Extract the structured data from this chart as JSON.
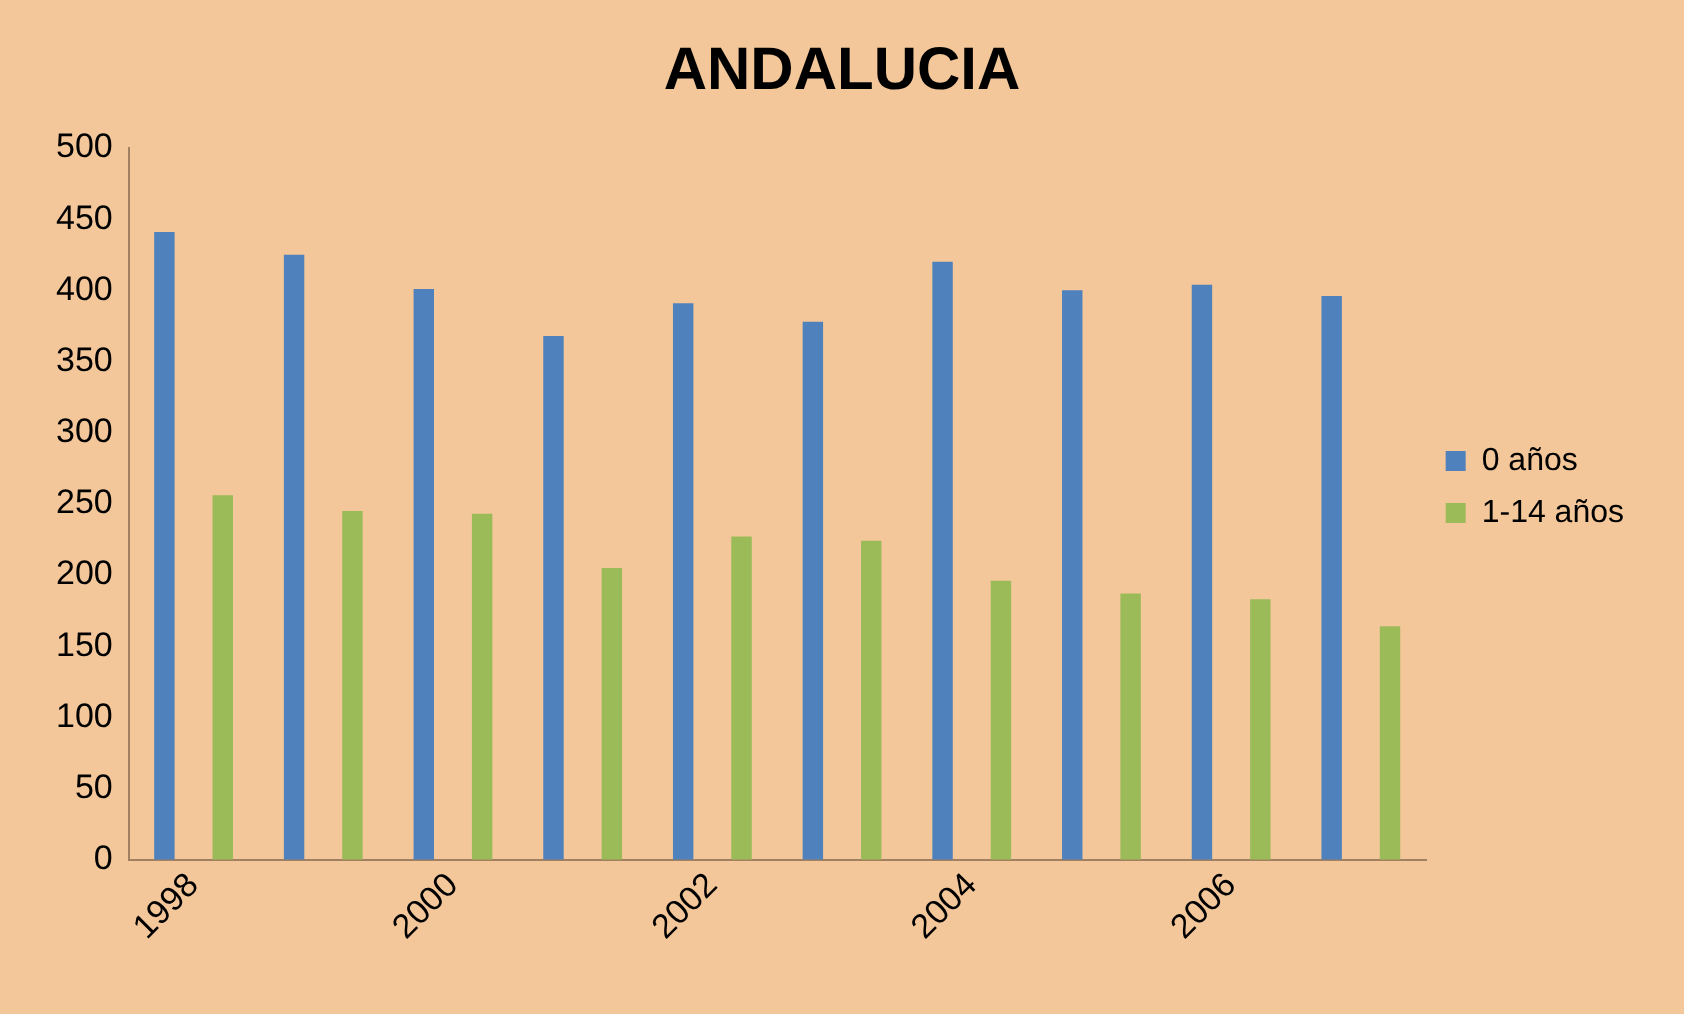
{
  "chart_data": {
    "type": "bar",
    "title": "ANDALUCIA",
    "categories": [
      "1998",
      null,
      "2000",
      null,
      "2002",
      null,
      "2004",
      null,
      "2006",
      null
    ],
    "series": [
      {
        "name": "0 años",
        "color": "#4f81bd",
        "values": [
          441,
          425,
          401,
          368,
          391,
          378,
          420,
          400,
          404,
          396
        ]
      },
      {
        "name": "1-14 años",
        "color": "#9bbb59",
        "values": [
          256,
          245,
          243,
          205,
          227,
          224,
          196,
          187,
          183,
          164
        ]
      }
    ],
    "ylim": [
      0,
      500
    ],
    "yticks": [
      0,
      50,
      100,
      150,
      200,
      250,
      300,
      350,
      400,
      450,
      500
    ],
    "grid": false,
    "legend": "right"
  }
}
